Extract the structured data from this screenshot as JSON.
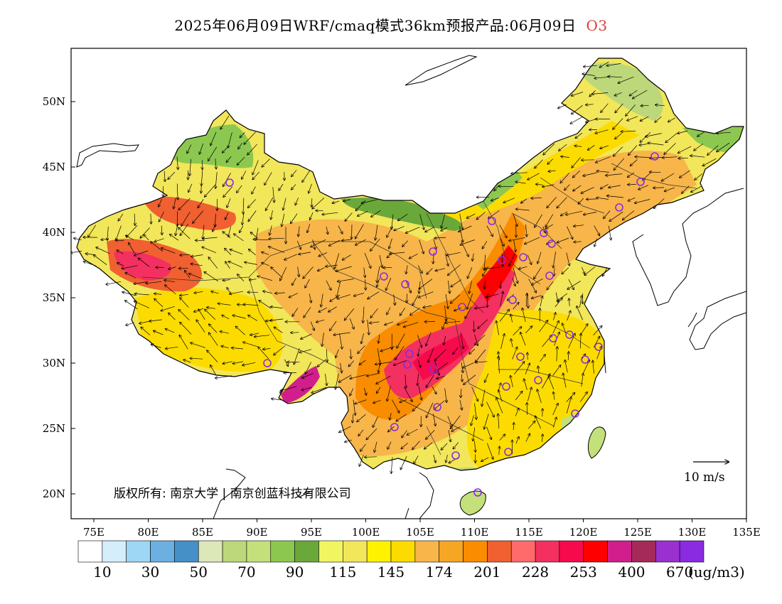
{
  "title": {
    "text": "2025年06月09日WRF/cmaq模式36km预报产品:06月09日",
    "pollutant": "O3"
  },
  "map": {
    "lon_ticks": [
      "75E",
      "80E",
      "85E",
      "90E",
      "95E",
      "100E",
      "105E",
      "110E",
      "115E",
      "120E",
      "125E",
      "130E",
      "135E"
    ],
    "lat_ticks": [
      "50N",
      "45N",
      "40N",
      "35N",
      "30N",
      "25N",
      "20N"
    ],
    "copyright": "版权所有: 南京大学 | 南京创蓝科技有限公司",
    "wind_scale_label": "10  m/s"
  },
  "legend": {
    "colors": [
      "#ffffff",
      "#d4eefb",
      "#9ed6f5",
      "#6bb0e0",
      "#4690c8",
      "#dde8b8",
      "#bcd87a",
      "#c4e07a",
      "#8cc850",
      "#6aa83a",
      "#f0f560",
      "#f2e65a",
      "#fff200",
      "#fcdc00",
      "#f7b54a",
      "#f5a623",
      "#fa8c00",
      "#f06030",
      "#ff6a6a",
      "#f33060",
      "#f70a4b",
      "#ff0000",
      "#d21e8c",
      "#a52a5a",
      "#9b30d0",
      "#8a2be2"
    ],
    "labels": [
      "10",
      "30",
      "50",
      "70",
      "90",
      "115",
      "145",
      "174",
      "201",
      "228",
      "253",
      "400",
      "670"
    ],
    "unit": "(ug/m3)"
  }
}
